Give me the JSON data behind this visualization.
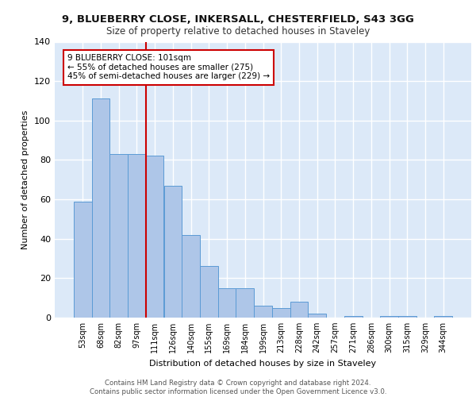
{
  "title1": "9, BLUEBERRY CLOSE, INKERSALL, CHESTERFIELD, S43 3GG",
  "title2": "Size of property relative to detached houses in Staveley",
  "xlabel": "Distribution of detached houses by size in Staveley",
  "ylabel": "Number of detached properties",
  "bar_labels": [
    "53sqm",
    "68sqm",
    "82sqm",
    "97sqm",
    "111sqm",
    "126sqm",
    "140sqm",
    "155sqm",
    "169sqm",
    "184sqm",
    "199sqm",
    "213sqm",
    "228sqm",
    "242sqm",
    "257sqm",
    "271sqm",
    "286sqm",
    "300sqm",
    "315sqm",
    "329sqm",
    "344sqm"
  ],
  "bar_values": [
    59,
    111,
    83,
    83,
    82,
    67,
    42,
    26,
    15,
    15,
    6,
    5,
    8,
    2,
    0,
    1,
    0,
    1,
    1,
    0,
    1
  ],
  "bar_color": "#aec6e8",
  "bar_edge_color": "#5b9bd5",
  "background_color": "#dce9f8",
  "grid_color": "#ffffff",
  "vline_x": 3.5,
  "vline_color": "#cc0000",
  "annotation_text": "9 BLUEBERRY CLOSE: 101sqm\n← 55% of detached houses are smaller (275)\n45% of semi-detached houses are larger (229) →",
  "annotation_box_color": "#ffffff",
  "annotation_box_edge": "#cc0000",
  "footer": "Contains HM Land Registry data © Crown copyright and database right 2024.\nContains public sector information licensed under the Open Government Licence v3.0.",
  "ylim": [
    0,
    140
  ],
  "yticks": [
    0,
    20,
    40,
    60,
    80,
    100,
    120,
    140
  ]
}
